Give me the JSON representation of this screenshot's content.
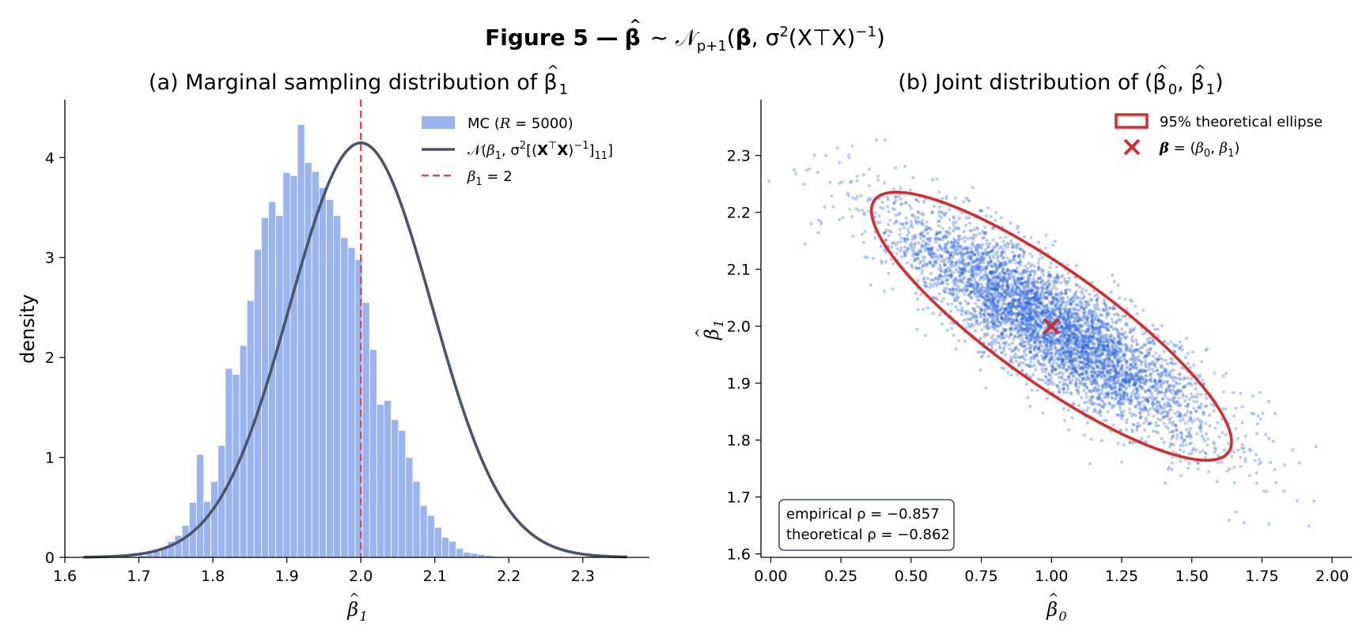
{
  "figure": {
    "title_prefix": "Figure 5 —",
    "title_rest": "(X⊤X)"
  },
  "colors": {
    "hist_fill": "#9ab4f0",
    "hist_edge": "#ffffff",
    "curve": "#4a5568",
    "ref_line": "#e24b4b",
    "scatter": "#2b63d9",
    "ellipse": "#d92b2b",
    "box_edge": "#3f4f66"
  },
  "chart_data": [
    {
      "type": "bar",
      "subtitle_prefix": "(a) Marginal sampling distribution of",
      "xlabel": "β̂1",
      "ylabel": "density",
      "xlim": [
        1.6,
        2.39
      ],
      "ylim": [
        0,
        4.58
      ],
      "xticks": [
        1.6,
        1.7,
        1.8,
        1.9,
        2.0,
        2.1,
        2.2,
        2.3
      ],
      "xtick_labels": [
        "1.6",
        "1.7",
        "1.8",
        "1.9",
        "2.0",
        "2.1",
        "2.2",
        "2.3"
      ],
      "yticks": [
        0,
        1,
        2,
        3,
        4
      ],
      "ytick_labels": [
        "0",
        "1",
        "2",
        "3",
        "4"
      ],
      "bin_start": 1.6998,
      "bin_width": 0.00975,
      "values": [
        0.02,
        0.04,
        0.06,
        0.1,
        0.16,
        0.22,
        0.32,
        0.55,
        1.03,
        0.56,
        0.76,
        1.12,
        1.89,
        1.83,
        2.12,
        2.57,
        3.08,
        3.4,
        3.56,
        3.42,
        3.85,
        3.82,
        4.33,
        3.95,
        3.86,
        3.7,
        3.58,
        3.42,
        3.2,
        3.1,
        2.98,
        2.55,
        2.08,
        1.53,
        1.57,
        1.38,
        1.27,
        1.0,
        0.76,
        0.52,
        0.42,
        0.3,
        0.2,
        0.16,
        0.09,
        0.05,
        0.04,
        0.03,
        0.02,
        0.01
      ],
      "normal_curve": {
        "mean": 2.0,
        "sd": 0.0962,
        "x_range": [
          1.625,
          2.36
        ]
      },
      "reference_x": 2.0,
      "legend": {
        "placement": "top-right",
        "mc_label": "MC (R = 5000)",
        "curve_label": "𝒩(β1,  σ²[(X⊤X)⁻¹]11)",
        "ref_label": "β1 = 2"
      }
    },
    {
      "type": "scatter",
      "subtitle_prefix": "(b) Joint distribution of",
      "xlabel": "β̂0",
      "ylabel": "β̂1",
      "xlim": [
        -0.035,
        2.07
      ],
      "ylim": [
        1.594,
        2.398
      ],
      "xticks": [
        0.0,
        0.25,
        0.5,
        0.75,
        1.0,
        1.25,
        1.5,
        1.75,
        2.0
      ],
      "xtick_labels": [
        "0.00",
        "0.25",
        "0.50",
        "0.75",
        "1.00",
        "1.25",
        "1.50",
        "1.75",
        "2.00"
      ],
      "yticks": [
        1.6,
        1.7,
        1.8,
        1.9,
        2.0,
        2.1,
        2.2,
        2.3
      ],
      "ytick_labels": [
        "1.6",
        "1.7",
        "1.8",
        "1.9",
        "2.0",
        "2.1",
        "2.2",
        "2.3"
      ],
      "true_point": {
        "x": 1.0,
        "y": 2.0
      },
      "sampling": {
        "n_points": 5000,
        "mean_x": 1.0,
        "mean_y": 2.0,
        "sd_x": 0.28,
        "sd_y": 0.1,
        "rho": -0.857
      },
      "ellipse_95": {
        "center": [
          1.0,
          2.0
        ],
        "sd_x": 0.262,
        "sd_y": 0.0962,
        "rho": -0.862,
        "chi2": 5.991
      },
      "legend": {
        "placement": "top-right",
        "ellipse_label": "95% theoretical ellipse",
        "point_label": "β = (β0, β1)"
      },
      "annotation": {
        "empirical": "empirical ρ = −0.857",
        "theoretical": "theoretical ρ = −0.862"
      }
    }
  ]
}
